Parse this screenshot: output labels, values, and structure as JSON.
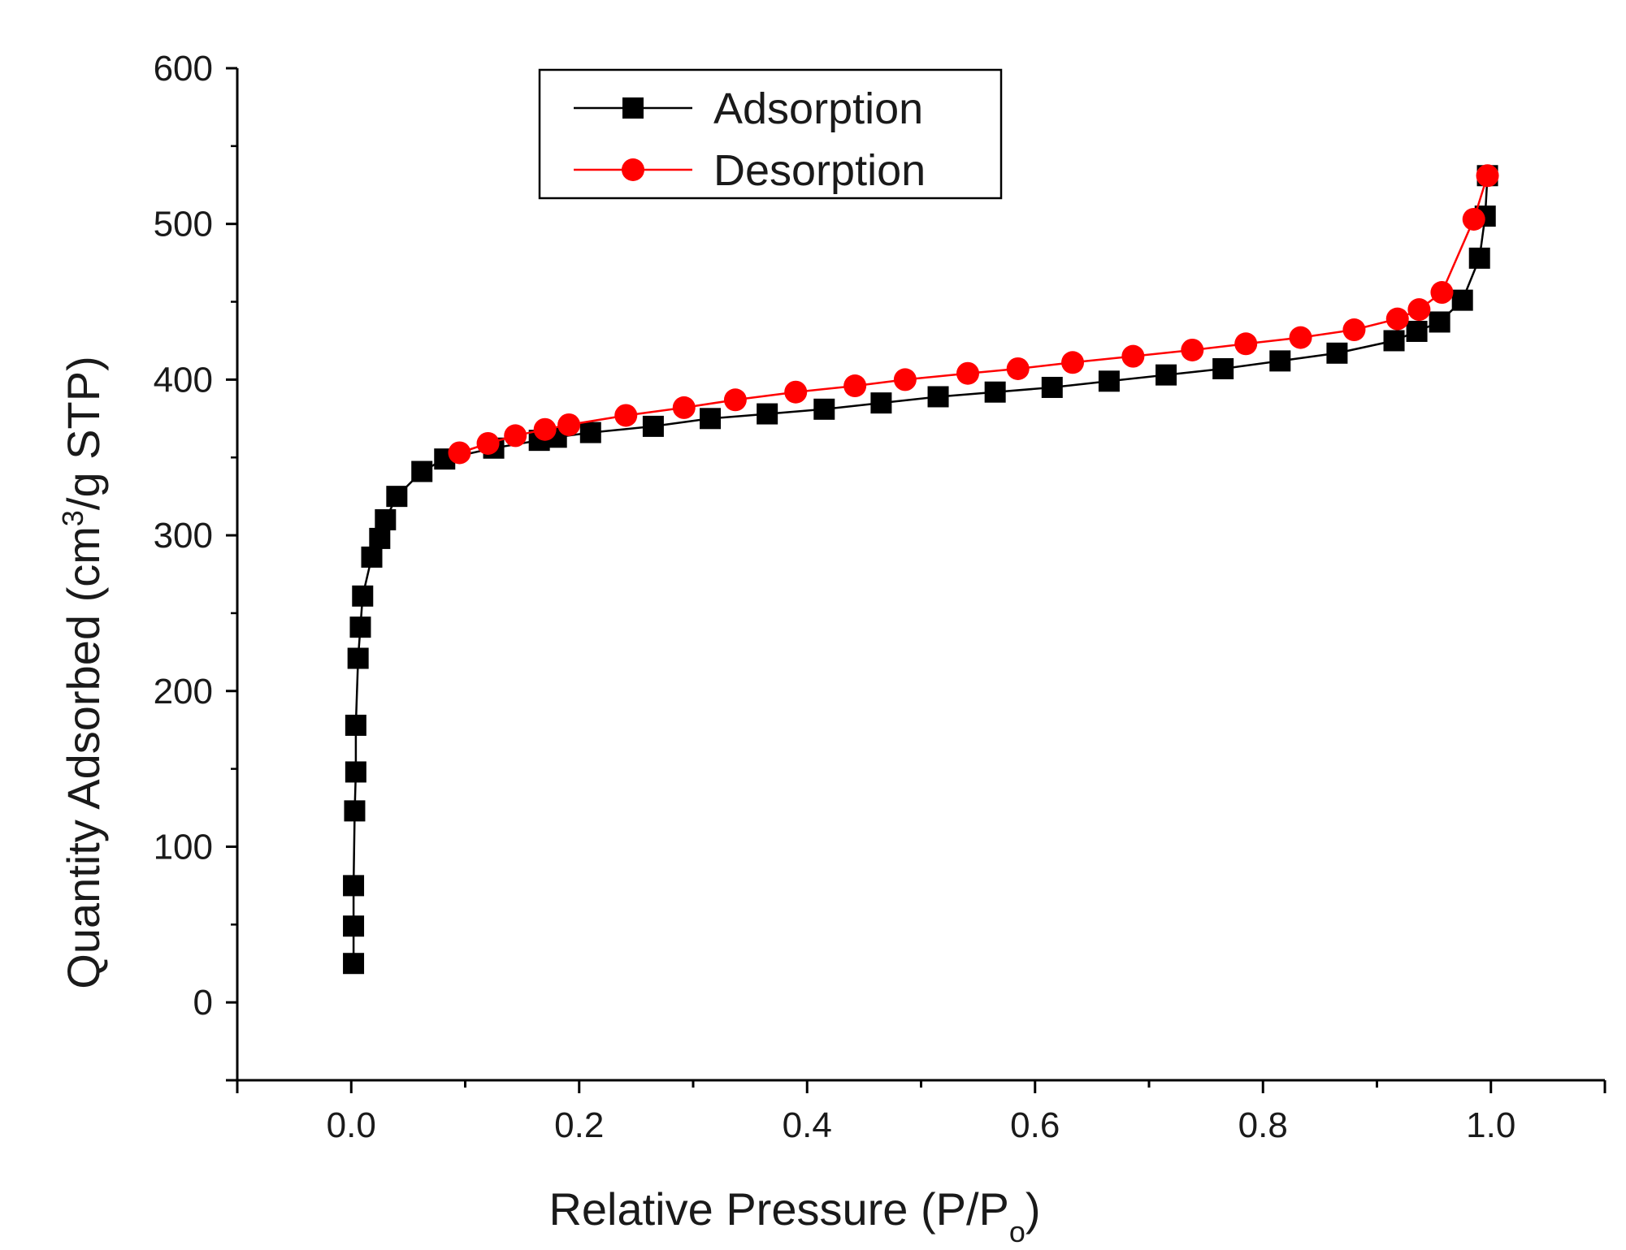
{
  "chart_data": {
    "type": "scatter",
    "title": "",
    "xlabel": {
      "main": "Relative Pressure (P/P",
      "sub": "o",
      "close": ")"
    },
    "ylabel": {
      "main": "Quantity Adsorbed (cm",
      "sup": "3",
      "rest": "/g STP)"
    },
    "xlim": [
      -0.1,
      1.1
    ],
    "ylim": [
      -50,
      600
    ],
    "x_ticks": [
      0.0,
      0.2,
      0.4,
      0.6,
      0.8,
      1.0
    ],
    "x_tick_labels": [
      "0.0",
      "0.2",
      "0.4",
      "0.6",
      "0.8",
      "1.0"
    ],
    "y_ticks": [
      0,
      100,
      200,
      300,
      400,
      500,
      600
    ],
    "y_tick_labels": [
      "0",
      "100",
      "200",
      "300",
      "400",
      "500",
      "600"
    ],
    "grid": false,
    "legend_position": "top-center",
    "series": [
      {
        "name": "Adsorption",
        "color": "#000000",
        "marker": "square",
        "x": [
          0.002,
          0.002,
          0.002,
          0.003,
          0.004,
          0.004,
          0.006,
          0.008,
          0.01,
          0.018,
          0.025,
          0.03,
          0.04,
          0.062,
          0.082,
          0.125,
          0.165,
          0.18,
          0.21,
          0.265,
          0.315,
          0.365,
          0.415,
          0.465,
          0.515,
          0.565,
          0.615,
          0.665,
          0.715,
          0.765,
          0.815,
          0.865,
          0.915,
          0.935,
          0.955,
          0.975,
          0.99,
          0.995,
          0.997
        ],
        "y": [
          25,
          49,
          75,
          123,
          148,
          178,
          221,
          241,
          261,
          286,
          298,
          310,
          325,
          341,
          349,
          356,
          361,
          363,
          366,
          370,
          375,
          378,
          381,
          385,
          389,
          392,
          395,
          399,
          403,
          407,
          412,
          417,
          425,
          431,
          437,
          451,
          478,
          505,
          531
        ]
      },
      {
        "name": "Desorption",
        "color": "#ff0000",
        "marker": "circle",
        "x": [
          0.997,
          0.985,
          0.957,
          0.937,
          0.918,
          0.88,
          0.833,
          0.785,
          0.738,
          0.686,
          0.633,
          0.585,
          0.541,
          0.486,
          0.442,
          0.39,
          0.337,
          0.292,
          0.241,
          0.191,
          0.17,
          0.144,
          0.12,
          0.095
        ],
        "y": [
          531,
          503,
          456,
          445,
          439,
          432,
          427,
          423,
          419,
          415,
          411,
          407,
          404,
          400,
          396,
          392,
          387,
          382,
          377,
          371,
          368,
          364,
          359,
          353
        ]
      }
    ]
  }
}
